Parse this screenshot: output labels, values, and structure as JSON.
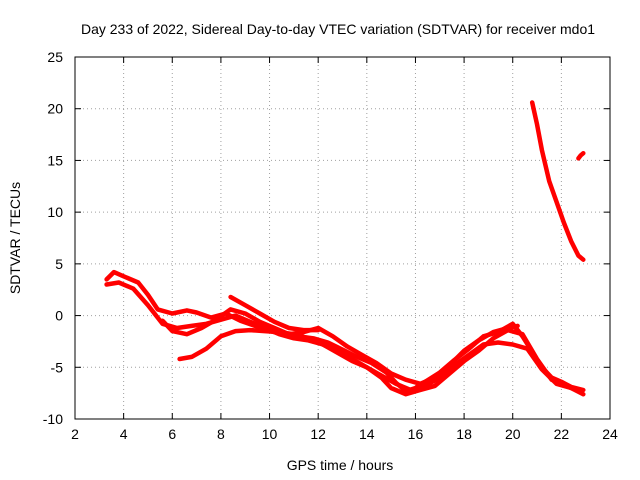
{
  "chart_data": {
    "type": "line",
    "title": "Day 233 of 2022, Sidereal Day-to-day VTEC variation (SDTVAR) for receiver mdo1",
    "xlabel": "GPS time / hours",
    "ylabel": "SDTVAR / TECUs",
    "xlim": [
      2,
      24
    ],
    "ylim": [
      -10,
      25
    ],
    "xticks": [
      2,
      4,
      6,
      8,
      10,
      12,
      14,
      16,
      18,
      20,
      22,
      24
    ],
    "yticks": [
      -10,
      -5,
      0,
      5,
      10,
      15,
      20,
      25
    ],
    "grid": true,
    "series_color": "#ff0000",
    "series": [
      {
        "name": "s1",
        "x": [
          3.3,
          3.6,
          4.0,
          4.6,
          5.0,
          5.4,
          6.0,
          6.6,
          7.0,
          7.6,
          8.2,
          8.8,
          9.4,
          10.0,
          10.6,
          11.2,
          11.8,
          12.4,
          13.0,
          13.6,
          14.2,
          14.8,
          15.2,
          15.6,
          16.0,
          16.4,
          17.0,
          17.6,
          18.2,
          18.8,
          19.4,
          20.0,
          20.4,
          20.8,
          21.2,
          21.6,
          22.0,
          22.4,
          22.9
        ],
        "values": [
          3.5,
          4.2,
          3.8,
          3.2,
          2.0,
          0.6,
          0.2,
          0.5,
          0.3,
          -0.2,
          0.2,
          -0.5,
          -1.0,
          -1.5,
          -1.8,
          -2.0,
          -2.2,
          -2.6,
          -3.3,
          -4.0,
          -4.6,
          -5.5,
          -6.5,
          -7.3,
          -7.0,
          -6.4,
          -5.5,
          -4.3,
          -3.2,
          -2.0,
          -1.6,
          -0.8,
          -2.0,
          -3.5,
          -5.0,
          -6.0,
          -6.4,
          -6.9,
          -7.2
        ]
      },
      {
        "name": "s2",
        "x": [
          3.3,
          3.8,
          4.4,
          5.0,
          5.6,
          6.2,
          6.8,
          7.4,
          8.0,
          8.6,
          9.2,
          9.8,
          10.4,
          11.0,
          11.6,
          12.2,
          12.8,
          13.4,
          14.0,
          14.6,
          15.0,
          15.6,
          16.2,
          16.8,
          17.4,
          18.0,
          18.6,
          19.2,
          19.8,
          20.4,
          21.0,
          21.6,
          22.2,
          22.8
        ],
        "values": [
          3.0,
          3.2,
          2.6,
          1.0,
          -0.8,
          -1.2,
          -1.0,
          -0.8,
          -0.4,
          0.0,
          -0.6,
          -1.2,
          -1.8,
          -2.2,
          -2.4,
          -2.8,
          -3.6,
          -4.4,
          -5.0,
          -6.0,
          -7.0,
          -7.6,
          -7.2,
          -6.8,
          -5.6,
          -4.4,
          -3.4,
          -2.2,
          -1.4,
          -1.8,
          -4.2,
          -6.2,
          -6.8,
          -7.4
        ]
      },
      {
        "name": "s3",
        "x": [
          6.3,
          6.8,
          7.4,
          8.0,
          8.6,
          9.2,
          9.8,
          10.4,
          11.0,
          11.6,
          12.2,
          12.8,
          13.4,
          14.0,
          14.6,
          15.2,
          15.8,
          16.4,
          17.0,
          17.6,
          18.2,
          18.8,
          19.4,
          20.0,
          20.6,
          21.2,
          21.8,
          22.4,
          22.9
        ],
        "values": [
          -4.2,
          -4.0,
          -3.2,
          -2.0,
          -1.5,
          -1.4,
          -1.5,
          -1.6,
          -1.8,
          -2.2,
          -2.8,
          -3.5,
          -4.2,
          -5.0,
          -5.8,
          -6.6,
          -7.2,
          -6.8,
          -6.0,
          -4.8,
          -3.8,
          -2.8,
          -2.6,
          -2.8,
          -3.2,
          -5.2,
          -6.6,
          -7.0,
          -7.6
        ]
      },
      {
        "name": "s4",
        "x": [
          5.6,
          6.0,
          6.6,
          7.2,
          7.8,
          8.4,
          9.0,
          9.6,
          10.2,
          10.8,
          11.4,
          12.0,
          12.6,
          13.2,
          13.8,
          14.4,
          15.0,
          15.6,
          16.2,
          16.8,
          17.4,
          18.0,
          18.6,
          19.2,
          19.8,
          20.2
        ],
        "values": [
          -0.5,
          -1.5,
          -1.8,
          -1.2,
          -0.4,
          0.6,
          0.2,
          -0.6,
          -1.2,
          -1.8,
          -1.6,
          -1.2,
          -2.0,
          -3.0,
          -3.8,
          -4.6,
          -5.6,
          -6.2,
          -6.6,
          -6.0,
          -4.8,
          -3.4,
          -2.4,
          -1.6,
          -1.2,
          -1.0
        ]
      },
      {
        "name": "s5",
        "x": [
          8.4,
          9.0,
          9.6,
          10.2,
          10.8,
          11.4,
          12.0
        ],
        "values": [
          1.8,
          1.0,
          0.2,
          -0.6,
          -1.2,
          -1.4,
          -1.4
        ]
      },
      {
        "name": "s6",
        "x": [
          20.8,
          21.0,
          21.2,
          21.5,
          21.8,
          22.1,
          22.4,
          22.7,
          22.9
        ],
        "values": [
          20.6,
          18.5,
          16.0,
          13.0,
          11.0,
          9.0,
          7.2,
          5.8,
          5.4
        ]
      },
      {
        "name": "s7",
        "x": [
          22.7,
          22.8,
          22.9
        ],
        "values": [
          15.2,
          15.5,
          15.7
        ]
      }
    ]
  }
}
